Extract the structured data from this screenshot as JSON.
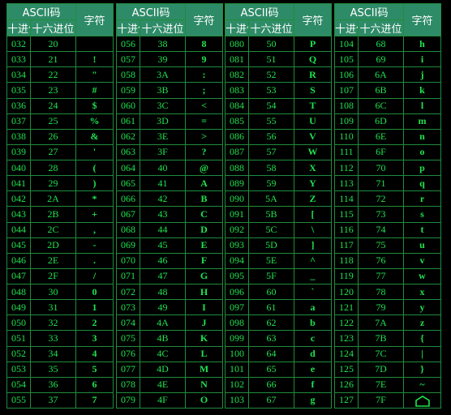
{
  "headers": {
    "ascii_code": "ASCII码",
    "decimal": "十进位",
    "hex": "十六进位",
    "character": "字符"
  },
  "blocks": [
    {
      "rows": [
        {
          "dec": "032",
          "hex": "20",
          "char": ""
        },
        {
          "dec": "033",
          "hex": "21",
          "char": "!"
        },
        {
          "dec": "034",
          "hex": "22",
          "char": "\""
        },
        {
          "dec": "035",
          "hex": "23",
          "char": "#"
        },
        {
          "dec": "036",
          "hex": "24",
          "char": "$"
        },
        {
          "dec": "037",
          "hex": "25",
          "char": "%"
        },
        {
          "dec": "038",
          "hex": "26",
          "char": "&"
        },
        {
          "dec": "039",
          "hex": "27",
          "char": "'"
        },
        {
          "dec": "040",
          "hex": "28",
          "char": "("
        },
        {
          "dec": "041",
          "hex": "29",
          "char": ")"
        },
        {
          "dec": "042",
          "hex": "2A",
          "char": "*"
        },
        {
          "dec": "043",
          "hex": "2B",
          "char": "+"
        },
        {
          "dec": "044",
          "hex": "2C",
          "char": ","
        },
        {
          "dec": "045",
          "hex": "2D",
          "char": "-"
        },
        {
          "dec": "046",
          "hex": "2E",
          "char": "."
        },
        {
          "dec": "047",
          "hex": "2F",
          "char": "/"
        },
        {
          "dec": "048",
          "hex": "30",
          "char": "0"
        },
        {
          "dec": "049",
          "hex": "31",
          "char": "1"
        },
        {
          "dec": "050",
          "hex": "32",
          "char": "2"
        },
        {
          "dec": "051",
          "hex": "33",
          "char": "3"
        },
        {
          "dec": "052",
          "hex": "34",
          "char": "4"
        },
        {
          "dec": "053",
          "hex": "35",
          "char": "5"
        },
        {
          "dec": "054",
          "hex": "36",
          "char": "6"
        },
        {
          "dec": "055",
          "hex": "37",
          "char": "7"
        }
      ]
    },
    {
      "rows": [
        {
          "dec": "056",
          "hex": "38",
          "char": "8"
        },
        {
          "dec": "057",
          "hex": "39",
          "char": "9"
        },
        {
          "dec": "058",
          "hex": "3A",
          "char": ":"
        },
        {
          "dec": "059",
          "hex": "3B",
          "char": ";"
        },
        {
          "dec": "060",
          "hex": "3C",
          "char": "<"
        },
        {
          "dec": "061",
          "hex": "3D",
          "char": "="
        },
        {
          "dec": "062",
          "hex": "3E",
          "char": ">"
        },
        {
          "dec": "063",
          "hex": "3F",
          "char": "?"
        },
        {
          "dec": "064",
          "hex": "40",
          "char": "@"
        },
        {
          "dec": "065",
          "hex": "41",
          "char": "A"
        },
        {
          "dec": "066",
          "hex": "42",
          "char": "B"
        },
        {
          "dec": "067",
          "hex": "43",
          "char": "C"
        },
        {
          "dec": "068",
          "hex": "44",
          "char": "D"
        },
        {
          "dec": "069",
          "hex": "45",
          "char": "E"
        },
        {
          "dec": "070",
          "hex": "46",
          "char": "F"
        },
        {
          "dec": "071",
          "hex": "47",
          "char": "G"
        },
        {
          "dec": "072",
          "hex": "48",
          "char": "H"
        },
        {
          "dec": "073",
          "hex": "49",
          "char": "I"
        },
        {
          "dec": "074",
          "hex": "4A",
          "char": "J"
        },
        {
          "dec": "075",
          "hex": "4B",
          "char": "K"
        },
        {
          "dec": "076",
          "hex": "4C",
          "char": "L"
        },
        {
          "dec": "077",
          "hex": "4D",
          "char": "M"
        },
        {
          "dec": "078",
          "hex": "4E",
          "char": "N"
        },
        {
          "dec": "079",
          "hex": "4F",
          "char": "O"
        }
      ]
    },
    {
      "rows": [
        {
          "dec": "080",
          "hex": "50",
          "char": "P"
        },
        {
          "dec": "081",
          "hex": "51",
          "char": "Q"
        },
        {
          "dec": "082",
          "hex": "52",
          "char": "R"
        },
        {
          "dec": "083",
          "hex": "53",
          "char": "S"
        },
        {
          "dec": "084",
          "hex": "54",
          "char": "T"
        },
        {
          "dec": "085",
          "hex": "55",
          "char": "U"
        },
        {
          "dec": "086",
          "hex": "56",
          "char": "V"
        },
        {
          "dec": "087",
          "hex": "57",
          "char": "W"
        },
        {
          "dec": "088",
          "hex": "58",
          "char": "X"
        },
        {
          "dec": "089",
          "hex": "59",
          "char": "Y"
        },
        {
          "dec": "090",
          "hex": "5A",
          "char": "Z"
        },
        {
          "dec": "091",
          "hex": "5B",
          "char": "["
        },
        {
          "dec": "092",
          "hex": "5C",
          "char": "\\"
        },
        {
          "dec": "093",
          "hex": "5D",
          "char": "]"
        },
        {
          "dec": "094",
          "hex": "5E",
          "char": "^"
        },
        {
          "dec": "095",
          "hex": "5F",
          "char": "_"
        },
        {
          "dec": "096",
          "hex": "60",
          "char": "`"
        },
        {
          "dec": "097",
          "hex": "61",
          "char": "a"
        },
        {
          "dec": "098",
          "hex": "62",
          "char": "b"
        },
        {
          "dec": "099",
          "hex": "63",
          "char": "c"
        },
        {
          "dec": "100",
          "hex": "64",
          "char": "d"
        },
        {
          "dec": "101",
          "hex": "65",
          "char": "e"
        },
        {
          "dec": "102",
          "hex": "66",
          "char": "f"
        },
        {
          "dec": "103",
          "hex": "67",
          "char": "g"
        }
      ]
    },
    {
      "rows": [
        {
          "dec": "104",
          "hex": "68",
          "char": "h"
        },
        {
          "dec": "105",
          "hex": "69",
          "char": "i"
        },
        {
          "dec": "106",
          "hex": "6A",
          "char": "j"
        },
        {
          "dec": "107",
          "hex": "6B",
          "char": "k"
        },
        {
          "dec": "108",
          "hex": "6C",
          "char": "l"
        },
        {
          "dec": "109",
          "hex": "6D",
          "char": "m"
        },
        {
          "dec": "110",
          "hex": "6E",
          "char": "n"
        },
        {
          "dec": "111",
          "hex": "6F",
          "char": "o"
        },
        {
          "dec": "112",
          "hex": "70",
          "char": "p"
        },
        {
          "dec": "113",
          "hex": "71",
          "char": "q"
        },
        {
          "dec": "114",
          "hex": "72",
          "char": "r"
        },
        {
          "dec": "115",
          "hex": "73",
          "char": "s"
        },
        {
          "dec": "116",
          "hex": "74",
          "char": "t"
        },
        {
          "dec": "117",
          "hex": "75",
          "char": "u"
        },
        {
          "dec": "118",
          "hex": "76",
          "char": "v"
        },
        {
          "dec": "119",
          "hex": "77",
          "char": "w"
        },
        {
          "dec": "120",
          "hex": "78",
          "char": "x"
        },
        {
          "dec": "121",
          "hex": "79",
          "char": "y"
        },
        {
          "dec": "122",
          "hex": "7A",
          "char": "z"
        },
        {
          "dec": "123",
          "hex": "7B",
          "char": "{"
        },
        {
          "dec": "124",
          "hex": "7C",
          "char": "|"
        },
        {
          "dec": "125",
          "hex": "7D",
          "char": "}"
        },
        {
          "dec": "126",
          "hex": "7E",
          "char": "~"
        },
        {
          "dec": "127",
          "hex": "7F",
          "char": "",
          "icon": "house-icon"
        }
      ]
    }
  ],
  "colors": {
    "background": "#000000",
    "header_bg": "#2e8b67",
    "header_text": "#ffffff",
    "cell_text": "#1ee34e",
    "border": "#1f8c3c"
  }
}
